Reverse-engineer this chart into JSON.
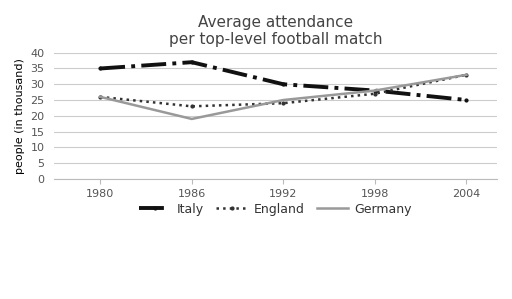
{
  "title": "Average attendance\nper top-level football match",
  "ylabel": "people (in thousand)",
  "years": [
    1980,
    1986,
    1992,
    1998,
    2004
  ],
  "italy": [
    35,
    37,
    30,
    28,
    25
  ],
  "england": [
    26,
    23,
    24,
    27,
    33
  ],
  "germany": [
    26,
    19,
    25,
    28,
    33
  ],
  "ylim": [
    0,
    40
  ],
  "yticks": [
    0,
    5,
    10,
    15,
    20,
    25,
    30,
    35,
    40
  ],
  "xticks": [
    1980,
    1986,
    1992,
    1998,
    2004
  ],
  "italy_color": "#111111",
  "england_color": "#333333",
  "germany_color": "#999999",
  "background_color": "#ffffff",
  "grid_color": "#cccccc",
  "legend_labels": [
    "Italy",
    "England",
    "Germany"
  ],
  "title_fontsize": 11,
  "label_fontsize": 8,
  "tick_fontsize": 8,
  "legend_fontsize": 9
}
